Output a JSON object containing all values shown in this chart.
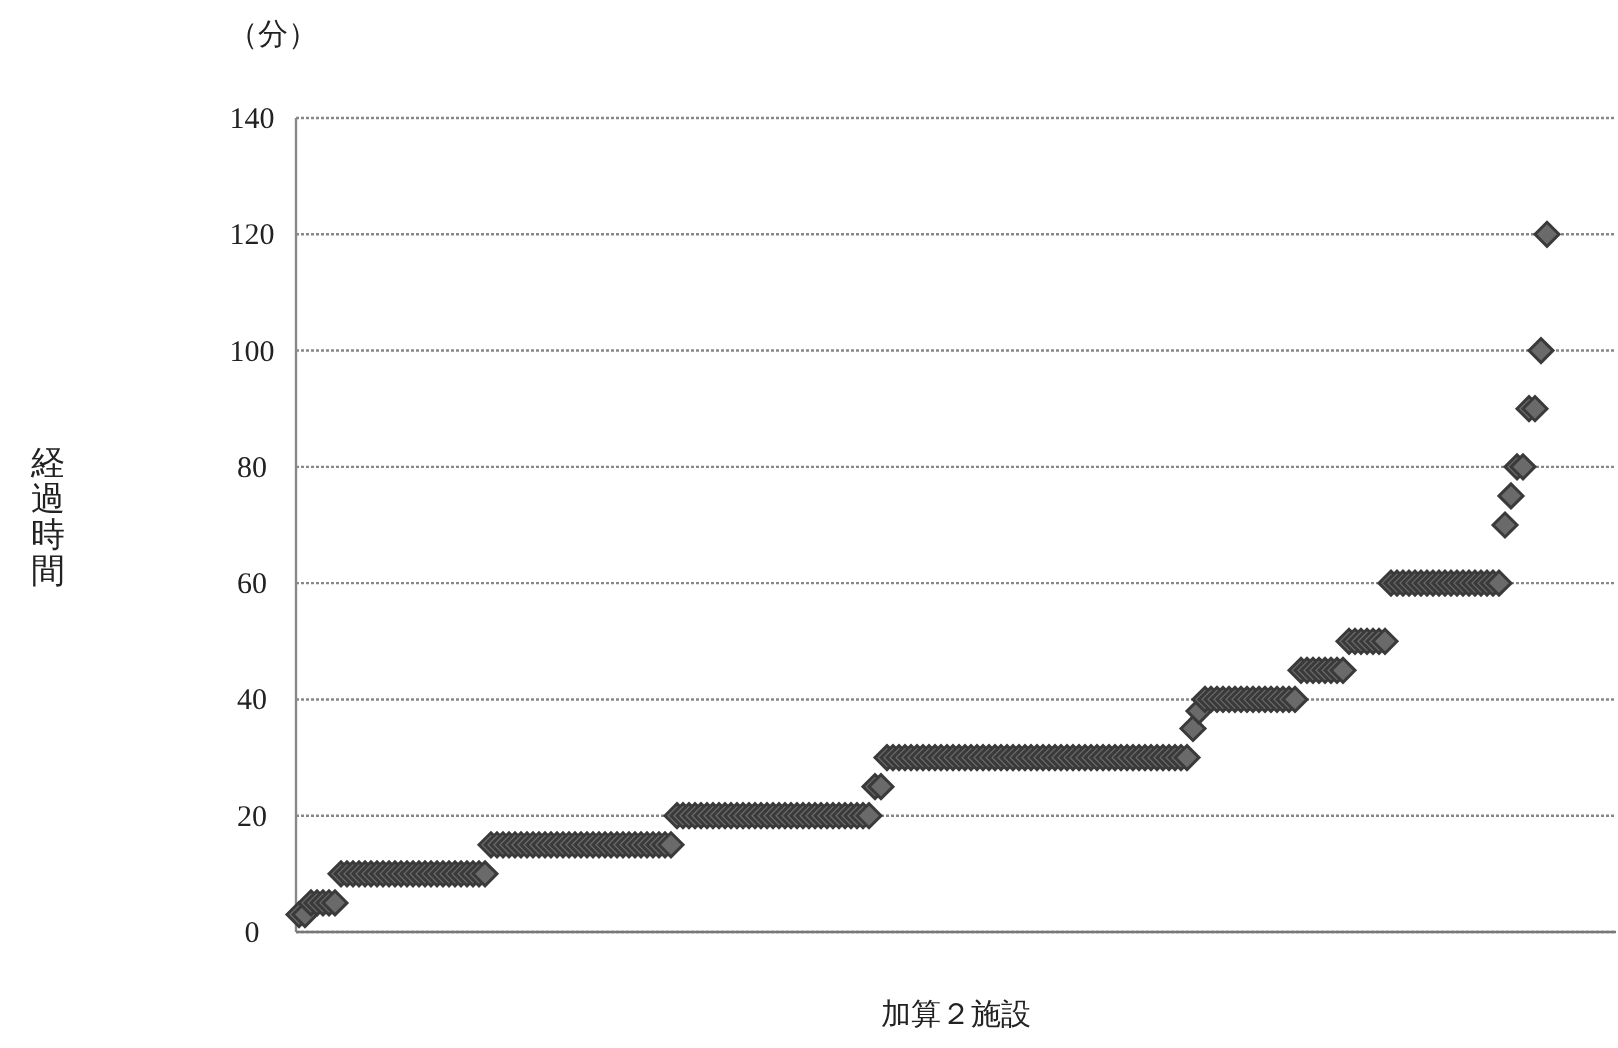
{
  "chart_data": {
    "type": "scatter",
    "xlabel": "加算２施設",
    "ylabel": "経過時間",
    "annotations": [
      "（分）"
    ],
    "ylim": [
      0,
      140
    ],
    "yticks": [
      0,
      20,
      40,
      60,
      80,
      100,
      120,
      140
    ],
    "grid": "y",
    "marker": "diamond",
    "tick_labels": "y",
    "categories": [
      null,
      null,
      null,
      null,
      null,
      null,
      null,
      null,
      null,
      null,
      null,
      null,
      null,
      null,
      null,
      null,
      null,
      null,
      null,
      null,
      null,
      null,
      null,
      null,
      null,
      null,
      null,
      null,
      null,
      null,
      null,
      null,
      null,
      null,
      null,
      null,
      null,
      null,
      null,
      null,
      null,
      null,
      null,
      null,
      null,
      null,
      null,
      null,
      null,
      null,
      null,
      null,
      null,
      null,
      null,
      null,
      null,
      null,
      null,
      null,
      null,
      null,
      null,
      null,
      null,
      null,
      null,
      null,
      null,
      null,
      null,
      null,
      null,
      null,
      null,
      null,
      null,
      null,
      null,
      null,
      null,
      null,
      null,
      null,
      null,
      null,
      null,
      null,
      null,
      null,
      null,
      null,
      null,
      null,
      null,
      null,
      null,
      null,
      null,
      null,
      null,
      null,
      null,
      null,
      null,
      null,
      null,
      null,
      null,
      null,
      null,
      null,
      null,
      null,
      null,
      null,
      null,
      null,
      null,
      null,
      null,
      null,
      null,
      null,
      null,
      null,
      null,
      null,
      null,
      null,
      null,
      null,
      null,
      null,
      null,
      null,
      null,
      null,
      null,
      null,
      null,
      null,
      null,
      null,
      null,
      null,
      null,
      null,
      null,
      null,
      null,
      null,
      null,
      null,
      null,
      null,
      null,
      null,
      null,
      null,
      null,
      null,
      null,
      null,
      null,
      null,
      null,
      null,
      null,
      null,
      null,
      null,
      null,
      null,
      null,
      null,
      null,
      null,
      null,
      null,
      null,
      null,
      null,
      null,
      null,
      null,
      null,
      null,
      null,
      null,
      null,
      null,
      null,
      null,
      null,
      null,
      null,
      null,
      null,
      null,
      null,
      null,
      null,
      null,
      null,
      null,
      null,
      null,
      null,
      null,
      null,
      null,
      null,
      null,
      null,
      null,
      null,
      null,
      null,
      null
    ],
    "series": [
      {
        "color": "#3a3a3a",
        "values": [
          3,
          3,
          5,
          5,
          5,
          5,
          5,
          10,
          10,
          10,
          10,
          10,
          10,
          10,
          10,
          10,
          10,
          10,
          10,
          10,
          10,
          10,
          10,
          10,
          10,
          10,
          10,
          10,
          10,
          10,
          10,
          10,
          15,
          15,
          15,
          15,
          15,
          15,
          15,
          15,
          15,
          15,
          15,
          15,
          15,
          15,
          15,
          15,
          15,
          15,
          15,
          15,
          15,
          15,
          15,
          15,
          15,
          15,
          15,
          15,
          15,
          15,
          15,
          20,
          20,
          20,
          20,
          20,
          20,
          20,
          20,
          20,
          20,
          20,
          20,
          20,
          20,
          20,
          20,
          20,
          20,
          20,
          20,
          20,
          20,
          20,
          20,
          20,
          20,
          20,
          20,
          20,
          20,
          20,
          20,
          20,
          25,
          25,
          30,
          30,
          30,
          30,
          30,
          30,
          30,
          30,
          30,
          30,
          30,
          30,
          30,
          30,
          30,
          30,
          30,
          30,
          30,
          30,
          30,
          30,
          30,
          30,
          30,
          30,
          30,
          30,
          30,
          30,
          30,
          30,
          30,
          30,
          30,
          30,
          30,
          30,
          30,
          30,
          30,
          30,
          30,
          30,
          30,
          30,
          30,
          30,
          30,
          30,
          30,
          35,
          38,
          40,
          40,
          40,
          40,
          40,
          40,
          40,
          40,
          40,
          40,
          40,
          40,
          40,
          40,
          40,
          40,
          45,
          45,
          45,
          45,
          45,
          45,
          45,
          45,
          50,
          50,
          50,
          50,
          50,
          50,
          50,
          60,
          60,
          60,
          60,
          60,
          60,
          60,
          60,
          60,
          60,
          60,
          60,
          60,
          60,
          60,
          60,
          60,
          60,
          60,
          70,
          75,
          80,
          80,
          90,
          90,
          100,
          120,
          null,
          null,
          null,
          null,
          null,
          null,
          null,
          null,
          null,
          null,
          null
        ]
      }
    ]
  }
}
